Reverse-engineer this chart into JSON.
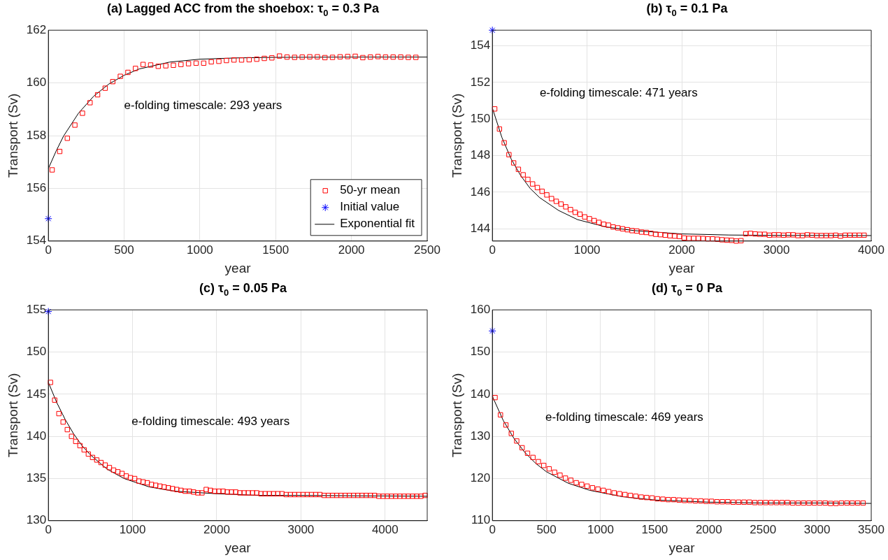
{
  "chart_data": [
    {
      "type": "scatter",
      "title": "(a) Lagged ACC from the shoebox: τ$_{0}$ = 0.3 Pa",
      "xlabel": "year",
      "ylabel": "Transport (Sv)",
      "xlim": [
        0,
        2500
      ],
      "xticks": [
        0,
        500,
        1000,
        1500,
        2000,
        2500
      ],
      "ylim": [
        154,
        162
      ],
      "yticks": [
        154,
        156,
        158,
        160,
        162
      ],
      "grid": true,
      "legend": "bottom right",
      "annotations": [
        "e-folding timescale: 293 years"
      ],
      "series": [
        {
          "name": "50-yr mean",
          "type": "scatter",
          "marker": "square",
          "color": "#ff0000",
          "x": [
            25,
            75,
            125,
            175,
            225,
            275,
            325,
            375,
            425,
            475,
            525,
            575,
            625,
            675,
            725,
            775,
            825,
            875,
            925,
            975,
            1025,
            1075,
            1125,
            1175,
            1225,
            1275,
            1325,
            1375,
            1425,
            1475,
            1525,
            1575,
            1625,
            1675,
            1725,
            1775,
            1825,
            1875,
            1925,
            1975,
            2025,
            2075,
            2125,
            2175,
            2225,
            2275,
            2325,
            2375,
            2425
          ],
          "values": [
            156.7,
            157.4,
            157.9,
            158.4,
            158.85,
            159.25,
            159.55,
            159.8,
            160.05,
            160.25,
            160.4,
            160.55,
            160.7,
            160.68,
            160.63,
            160.65,
            160.67,
            160.7,
            160.73,
            160.75,
            160.75,
            160.8,
            160.82,
            160.85,
            160.87,
            160.87,
            160.88,
            160.9,
            160.93,
            160.95,
            161.02,
            160.98,
            160.97,
            160.98,
            160.99,
            160.99,
            160.96,
            160.97,
            160.99,
            161.0,
            161.01,
            160.96,
            160.98,
            161.0,
            160.98,
            160.98,
            160.98,
            160.97,
            160.97
          ]
        },
        {
          "name": "Initial value",
          "type": "scatter",
          "marker": "cross",
          "color": "#0000ff",
          "x": [
            0
          ],
          "values": [
            154.85
          ]
        },
        {
          "name": "Exponential fit",
          "type": "line",
          "marker": "none",
          "color": "#000000",
          "x": [
            0,
            50,
            100,
            200,
            300,
            400,
            500,
            600,
            800,
            1000,
            1250,
            1500,
            2000,
            2500
          ],
          "values": [
            156.75,
            157.4,
            157.98,
            158.86,
            159.5,
            159.96,
            160.29,
            160.53,
            160.79,
            160.9,
            160.95,
            160.97,
            160.98,
            160.98
          ]
        }
      ]
    },
    {
      "type": "scatter",
      "title": "(b) τ$_{0}$ = 0.1 Pa",
      "xlabel": "year",
      "ylabel": "Transport (Sv)",
      "xlim": [
        0,
        4000
      ],
      "xticks": [
        0,
        1000,
        2000,
        3000,
        4000
      ],
      "ylim": [
        143.33,
        154.85
      ],
      "yticks": [
        144,
        146,
        148,
        150,
        152,
        154
      ],
      "grid": true,
      "annotations": [
        "e-folding timescale: 471 years"
      ],
      "series": [
        {
          "type": "scatter",
          "marker": "square",
          "color": "#ff0000",
          "x": [
            25,
            75,
            125,
            175,
            225,
            275,
            325,
            375,
            425,
            475,
            525,
            575,
            625,
            675,
            725,
            775,
            825,
            875,
            925,
            975,
            1025,
            1075,
            1125,
            1175,
            1225,
            1275,
            1325,
            1375,
            1425,
            1475,
            1525,
            1575,
            1625,
            1675,
            1725,
            1775,
            1825,
            1875,
            1925,
            1975,
            2025,
            2075,
            2125,
            2175,
            2225,
            2275,
            2325,
            2375,
            2425,
            2475,
            2525,
            2575,
            2625,
            2675,
            2725,
            2775,
            2825,
            2875,
            2925,
            2975,
            3025,
            3075,
            3125,
            3175,
            3225,
            3275,
            3325,
            3375,
            3425,
            3475,
            3525,
            3575,
            3625,
            3675,
            3725,
            3775,
            3825,
            3875,
            3925
          ],
          "values": [
            150.55,
            149.45,
            148.7,
            148.05,
            147.6,
            147.25,
            146.95,
            146.7,
            146.45,
            146.25,
            146.05,
            145.85,
            145.65,
            145.5,
            145.35,
            145.2,
            145.05,
            144.9,
            144.8,
            144.65,
            144.55,
            144.45,
            144.35,
            144.25,
            144.2,
            144.1,
            144.05,
            144.0,
            143.95,
            143.9,
            143.88,
            143.82,
            143.8,
            143.75,
            143.7,
            143.68,
            143.65,
            143.62,
            143.6,
            143.58,
            143.5,
            143.48,
            143.48,
            143.48,
            143.47,
            143.45,
            143.45,
            143.43,
            143.4,
            143.38,
            143.37,
            143.33,
            143.35,
            143.73,
            143.75,
            143.72,
            143.7,
            143.7,
            143.65,
            143.67,
            143.67,
            143.65,
            143.67,
            143.67,
            143.63,
            143.63,
            143.67,
            143.65,
            143.63,
            143.63,
            143.63,
            143.63,
            143.65,
            143.6,
            143.65,
            143.65,
            143.65,
            143.65,
            143.65
          ]
        },
        {
          "type": "scatter",
          "marker": "cross",
          "color": "#0000ff",
          "x": [
            0
          ],
          "values": [
            154.85
          ]
        },
        {
          "type": "line",
          "marker": "none",
          "color": "#000000",
          "x": [
            0,
            100,
            200,
            300,
            400,
            500,
            700,
            900,
            1200,
            1500,
            2000,
            2500,
            3000,
            4000
          ],
          "values": [
            150.6,
            149.0,
            147.8,
            146.9,
            146.2,
            145.7,
            145.0,
            144.5,
            144.1,
            143.9,
            143.72,
            143.66,
            143.64,
            143.63
          ]
        }
      ]
    },
    {
      "type": "scatter",
      "title": "(c) τ$_{0}$ = 0.05 Pa",
      "xlabel": "year",
      "ylabel": "Transport (Sv)",
      "xlim": [
        0,
        4500
      ],
      "xticks": [
        0,
        1000,
        2000,
        3000,
        4000
      ],
      "ylim": [
        130,
        155
      ],
      "yticks": [
        130,
        135,
        140,
        145,
        150,
        155
      ],
      "grid": true,
      "annotations": [
        "e-folding timescale: 493 years"
      ],
      "series": [
        {
          "type": "scatter",
          "marker": "square",
          "color": "#ff0000",
          "x": [
            25,
            75,
            125,
            175,
            225,
            275,
            325,
            375,
            425,
            475,
            525,
            575,
            625,
            675,
            725,
            775,
            825,
            875,
            925,
            975,
            1025,
            1075,
            1125,
            1175,
            1225,
            1275,
            1325,
            1375,
            1425,
            1475,
            1525,
            1575,
            1625,
            1675,
            1725,
            1775,
            1825,
            1875,
            1925,
            1975,
            2025,
            2075,
            2125,
            2175,
            2225,
            2275,
            2325,
            2375,
            2425,
            2475,
            2525,
            2575,
            2625,
            2675,
            2725,
            2775,
            2825,
            2875,
            2925,
            2975,
            3025,
            3075,
            3125,
            3175,
            3225,
            3275,
            3325,
            3375,
            3425,
            3475,
            3525,
            3575,
            3625,
            3675,
            3725,
            3775,
            3825,
            3875,
            3925,
            3975,
            4025,
            4075,
            4125,
            4175,
            4225,
            4275,
            4325,
            4375,
            4425,
            4475
          ],
          "values": [
            146.4,
            144.3,
            142.7,
            141.7,
            140.8,
            140.0,
            139.4,
            138.9,
            138.4,
            137.9,
            137.5,
            137.2,
            136.9,
            136.6,
            136.3,
            136.0,
            135.8,
            135.6,
            135.3,
            135.1,
            135.0,
            134.7,
            134.6,
            134.5,
            134.3,
            134.2,
            134.1,
            134.0,
            133.9,
            133.8,
            133.7,
            133.6,
            133.5,
            133.5,
            133.4,
            133.3,
            133.3,
            133.7,
            133.6,
            133.5,
            133.5,
            133.5,
            133.4,
            133.4,
            133.4,
            133.3,
            133.3,
            133.3,
            133.3,
            133.3,
            133.2,
            133.2,
            133.2,
            133.2,
            133.2,
            133.2,
            133.1,
            133.1,
            133.1,
            133.1,
            133.1,
            133.1,
            133.1,
            133.1,
            133.1,
            133.0,
            133.0,
            133.0,
            133.0,
            133.0,
            133.0,
            133.0,
            133.0,
            133.0,
            133.0,
            133.0,
            133.0,
            133.0,
            132.9,
            132.9,
            132.9,
            132.9,
            132.9,
            132.9,
            132.9,
            132.9,
            132.9,
            132.9,
            132.9,
            133.0
          ]
        },
        {
          "type": "scatter",
          "marker": "cross",
          "color": "#0000ff",
          "x": [
            0
          ],
          "values": [
            154.8
          ]
        },
        {
          "type": "line",
          "marker": "none",
          "color": "#000000",
          "x": [
            0,
            100,
            200,
            300,
            400,
            500,
            700,
            900,
            1200,
            1500,
            2000,
            2500,
            3000,
            4500
          ],
          "values": [
            146.4,
            144.0,
            142.0,
            140.3,
            138.9,
            137.8,
            136.1,
            135.0,
            134.0,
            133.5,
            133.2,
            133.0,
            133.0,
            132.9
          ]
        }
      ]
    },
    {
      "type": "scatter",
      "title": "(d) τ$_{0}$ = 0 Pa",
      "xlabel": "year",
      "ylabel": "Transport (Sv)",
      "xlim": [
        0,
        3500
      ],
      "xticks": [
        0,
        500,
        1000,
        1500,
        2000,
        2500,
        3000,
        3500
      ],
      "ylim": [
        110,
        160
      ],
      "yticks": [
        110,
        120,
        130,
        140,
        150,
        160
      ],
      "grid": true,
      "annotations": [
        "e-folding timescale: 469 years"
      ],
      "series": [
        {
          "type": "scatter",
          "marker": "square",
          "color": "#ff0000",
          "x": [
            25,
            75,
            125,
            175,
            225,
            275,
            325,
            375,
            425,
            475,
            525,
            575,
            625,
            675,
            725,
            775,
            825,
            875,
            925,
            975,
            1025,
            1075,
            1125,
            1175,
            1225,
            1275,
            1325,
            1375,
            1425,
            1475,
            1525,
            1575,
            1625,
            1675,
            1725,
            1775,
            1825,
            1875,
            1925,
            1975,
            2025,
            2075,
            2125,
            2175,
            2225,
            2275,
            2325,
            2375,
            2425,
            2475,
            2525,
            2575,
            2625,
            2675,
            2725,
            2775,
            2825,
            2875,
            2925,
            2975,
            3025,
            3075,
            3125,
            3175,
            3225,
            3275,
            3325,
            3375,
            3425
          ],
          "values": [
            139.2,
            135.1,
            132.7,
            130.7,
            128.9,
            127.3,
            126.0,
            125.0,
            124.0,
            123.1,
            122.3,
            121.5,
            120.8,
            120.1,
            119.6,
            119.0,
            118.6,
            118.2,
            117.8,
            117.5,
            117.2,
            116.9,
            116.6,
            116.4,
            116.2,
            116.0,
            115.8,
            115.6,
            115.5,
            115.4,
            115.2,
            115.1,
            115.0,
            115.0,
            114.9,
            114.8,
            114.8,
            114.7,
            114.7,
            114.6,
            114.6,
            114.5,
            114.5,
            114.5,
            114.4,
            114.4,
            114.4,
            114.4,
            114.3,
            114.3,
            114.3,
            114.3,
            114.3,
            114.3,
            114.3,
            114.2,
            114.2,
            114.2,
            114.2,
            114.2,
            114.2,
            114.2,
            114.1,
            114.1,
            114.2,
            114.2,
            114.2,
            114.2,
            114.2
          ]
        },
        {
          "type": "scatter",
          "marker": "cross",
          "color": "#0000ff",
          "x": [
            0
          ],
          "values": [
            155
          ]
        },
        {
          "type": "line",
          "marker": "none",
          "color": "#000000",
          "x": [
            0,
            100,
            200,
            300,
            400,
            500,
            700,
            900,
            1200,
            1500,
            2000,
            2500,
            3000,
            3500
          ],
          "values": [
            139.5,
            133.8,
            129.5,
            126.2,
            123.6,
            121.6,
            118.9,
            117.2,
            115.7,
            114.9,
            114.4,
            114.2,
            114.2,
            114.1
          ]
        }
      ]
    }
  ]
}
